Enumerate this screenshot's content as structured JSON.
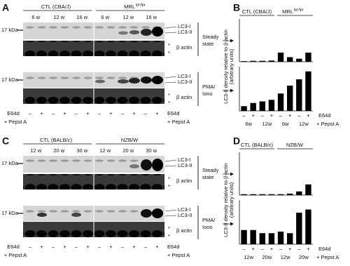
{
  "panels": [
    {
      "letter": "A",
      "groups": [
        {
          "name": "CTL (CBA/J)"
        },
        {
          "name": "MRL",
          "sup": "lpr/lpr"
        }
      ],
      "ages": [
        "6 w",
        "12 w",
        "16 w",
        "6 w",
        "12 w",
        "16 w"
      ],
      "marker": "17 kDa",
      "blots": [
        {
          "condition": [
            "Steady",
            "state"
          ],
          "bands": [
            "LC3-I",
            "LC3-II"
          ],
          "loading": "β actin"
        },
        {
          "condition": [
            "PMA/",
            "Iono"
          ],
          "bands": [
            "LC3-I",
            "LC3-II"
          ],
          "loading": "β actin"
        }
      ],
      "note_mark": "*",
      "signs": [
        "–",
        "+",
        "–",
        "+",
        "–",
        "+",
        "–",
        "+",
        "–",
        "+",
        "–",
        "+"
      ],
      "treatment": [
        "E64d",
        "+ Pepst A"
      ],
      "chart_letter": "B",
      "ylabel": [
        "LC3-II density relative to β-actin",
        "(arbitrary units)"
      ],
      "chart_groups": [
        {
          "name": "CTL (CBA/J)"
        },
        {
          "name": "MRL",
          "sup": "lpr/lpr"
        }
      ],
      "chart_ages": [
        "6w",
        "12w",
        "6w",
        "12w"
      ]
    },
    {
      "letter": "C",
      "groups": [
        {
          "name": "CTL (BALB/c)"
        },
        {
          "name": "NZB/W"
        }
      ],
      "ages": [
        "12 w",
        "20 w",
        "30 w",
        "12 w",
        "20 w",
        "30 w"
      ],
      "marker": "17 kDa",
      "blots": [
        {
          "condition": [
            "Steady",
            "state"
          ],
          "bands": [
            "LC3-I",
            "LC3-II"
          ],
          "loading": "β actin"
        },
        {
          "condition": [
            "PMA/",
            "Iono"
          ],
          "bands": [
            "LC3-I",
            "LC3-II"
          ],
          "loading": "β actin"
        }
      ],
      "note_mark": "*",
      "signs": [
        "–",
        "+",
        "–",
        "+",
        "–",
        "+",
        "–",
        "+",
        "–",
        "+",
        "–",
        "+"
      ],
      "treatment": [
        "E64d",
        "+ Pepst A"
      ],
      "chart_letter": "D",
      "ylabel": [
        "LC3-II density relative to β-actin",
        "(arbitrary units)"
      ],
      "chart_groups": [
        {
          "name": "CTL (BALB/c)"
        },
        {
          "name": "NZB/W"
        }
      ],
      "chart_ages": [
        "12w",
        "20w",
        "12w",
        "20w"
      ]
    }
  ],
  "chart_data": [
    {
      "type": "bar",
      "color": "#000000",
      "ylim": [
        0,
        1.4
      ],
      "values": [
        0.02,
        0.03,
        0.03,
        0.04,
        0.3,
        0.15,
        0.1,
        0.3
      ]
    },
    {
      "type": "bar",
      "color": "#000000",
      "ylim": [
        0,
        1.4
      ],
      "values": [
        0.15,
        0.25,
        0.3,
        0.35,
        0.55,
        0.8,
        1.0,
        1.25
      ],
      "categories": [
        "–",
        "+",
        "–",
        "+",
        "–",
        "+",
        "–",
        "+"
      ]
    },
    {
      "type": "bar",
      "color": "#000000",
      "ylim": [
        0,
        1.4
      ],
      "values": [
        0.03,
        0.03,
        0.03,
        0.03,
        0.03,
        0.05,
        0.12,
        0.35
      ]
    },
    {
      "type": "bar",
      "color": "#000000",
      "ylim": [
        0,
        1.4
      ],
      "values": [
        0.45,
        0.45,
        0.35,
        0.35,
        0.4,
        0.35,
        1.0,
        1.1
      ],
      "categories": [
        "–",
        "+",
        "–",
        "+",
        "–",
        "+",
        "–",
        "+"
      ]
    }
  ]
}
